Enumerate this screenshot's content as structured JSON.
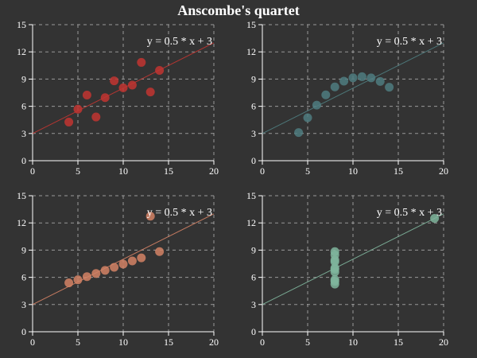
{
  "title": "Anscombe's quartet",
  "chart_data": [
    {
      "type": "scatter",
      "x": [
        10,
        8,
        13,
        9,
        11,
        14,
        6,
        4,
        12,
        7,
        5
      ],
      "y": [
        8.04,
        6.95,
        7.58,
        8.81,
        8.33,
        9.96,
        7.24,
        4.26,
        10.84,
        4.82,
        5.68
      ],
      "xlim": [
        0,
        20
      ],
      "ylim": [
        0,
        15
      ],
      "xticks": [
        0,
        5,
        10,
        15,
        20
      ],
      "yticks": [
        0,
        3,
        6,
        9,
        12,
        15
      ],
      "fit_line": {
        "slope": 0.5,
        "intercept": 3
      },
      "annotation": "y = 0.5 * x + 3",
      "color": "#c23531",
      "grid": true
    },
    {
      "type": "scatter",
      "x": [
        10,
        8,
        13,
        9,
        11,
        14,
        6,
        4,
        12,
        7,
        5
      ],
      "y": [
        9.14,
        8.14,
        8.74,
        8.77,
        9.26,
        8.1,
        6.13,
        3.1,
        9.13,
        7.26,
        4.74
      ],
      "xlim": [
        0,
        20
      ],
      "ylim": [
        0,
        15
      ],
      "xticks": [
        0,
        5,
        10,
        15,
        20
      ],
      "yticks": [
        0,
        3,
        6,
        9,
        12,
        15
      ],
      "fit_line": {
        "slope": 0.5,
        "intercept": 3
      },
      "annotation": "y = 0.5 * x + 3",
      "color": "#4f7d80",
      "grid": true
    },
    {
      "type": "scatter",
      "x": [
        10,
        8,
        13,
        9,
        11,
        14,
        6,
        4,
        12,
        7,
        5
      ],
      "y": [
        7.46,
        6.77,
        12.74,
        7.11,
        7.81,
        8.84,
        6.08,
        5.39,
        8.15,
        6.42,
        5.73
      ],
      "xlim": [
        0,
        20
      ],
      "ylim": [
        0,
        15
      ],
      "xticks": [
        0,
        5,
        10,
        15,
        20
      ],
      "yticks": [
        0,
        3,
        6,
        9,
        12,
        15
      ],
      "fit_line": {
        "slope": 0.5,
        "intercept": 3
      },
      "annotation": "y = 0.5 * x + 3",
      "color": "#d48265",
      "grid": true
    },
    {
      "type": "scatter",
      "x": [
        8,
        8,
        8,
        8,
        8,
        8,
        8,
        19,
        8,
        8,
        8
      ],
      "y": [
        6.58,
        5.76,
        7.71,
        8.84,
        8.47,
        7.04,
        5.25,
        12.5,
        5.56,
        7.91,
        6.89
      ],
      "xlim": [
        0,
        20
      ],
      "ylim": [
        0,
        15
      ],
      "xticks": [
        0,
        5,
        10,
        15,
        20
      ],
      "yticks": [
        0,
        3,
        6,
        9,
        12,
        15
      ],
      "fit_line": {
        "slope": 0.5,
        "intercept": 3
      },
      "annotation": "y = 0.5 * x + 3",
      "color": "#7fb59c",
      "grid": true
    }
  ]
}
